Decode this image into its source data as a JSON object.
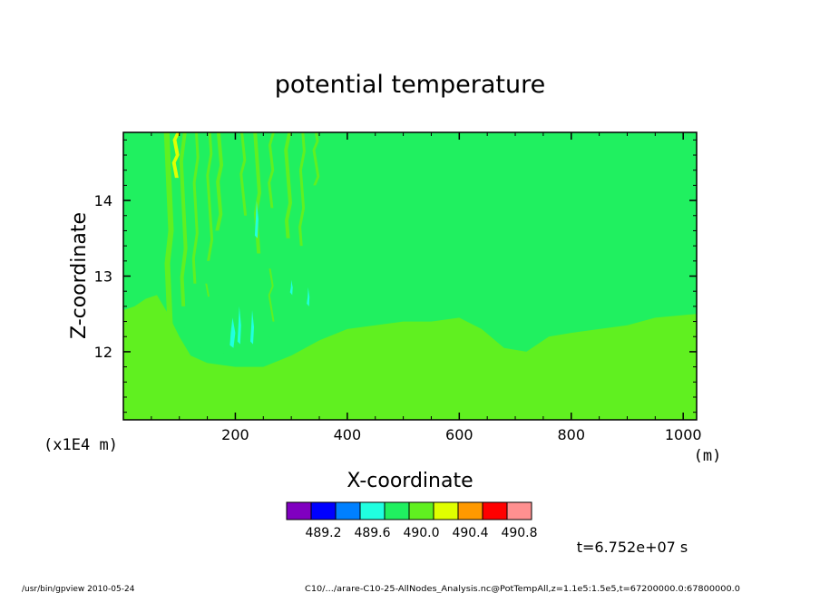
{
  "chart_data": {
    "type": "heatmap",
    "title": "potential temperature",
    "xlabel": "X-coordinate",
    "ylabel": "Z-coordinate",
    "x_unit": "(m)",
    "y_unit": "(x1E4 m)",
    "xlim": [
      0,
      1024
    ],
    "ylim": [
      11.1,
      14.9
    ],
    "x_ticks": [
      {
        "value": 200,
        "label": "200"
      },
      {
        "value": 400,
        "label": "400"
      },
      {
        "value": 600,
        "label": "600"
      },
      {
        "value": 800,
        "label": "800"
      },
      {
        "value": 1000,
        "label": "1000"
      }
    ],
    "y_ticks": [
      {
        "value": 12,
        "label": "12"
      },
      {
        "value": 13,
        "label": "13"
      },
      {
        "value": 14,
        "label": "14"
      }
    ],
    "background_color": "#20f060",
    "lower_layer": {
      "color": "#60f020",
      "boundary": [
        [
          0,
          12.55
        ],
        [
          20,
          12.6
        ],
        [
          40,
          12.7
        ],
        [
          60,
          12.75
        ],
        [
          80,
          12.5
        ],
        [
          100,
          12.2
        ],
        [
          120,
          11.95
        ],
        [
          150,
          11.85
        ],
        [
          200,
          11.8
        ],
        [
          250,
          11.8
        ],
        [
          300,
          11.95
        ],
        [
          350,
          12.15
        ],
        [
          400,
          12.3
        ],
        [
          450,
          12.35
        ],
        [
          500,
          12.4
        ],
        [
          550,
          12.4
        ],
        [
          600,
          12.45
        ],
        [
          640,
          12.3
        ],
        [
          680,
          12.05
        ],
        [
          720,
          12.0
        ],
        [
          760,
          12.2
        ],
        [
          800,
          12.25
        ],
        [
          850,
          12.3
        ],
        [
          900,
          12.35
        ],
        [
          950,
          12.45
        ],
        [
          1024,
          12.5
        ]
      ]
    },
    "cool_pocket": {
      "color": "#20f060",
      "outline": [
        [
          100,
          12.5
        ],
        [
          130,
          12.7
        ],
        [
          170,
          12.75
        ],
        [
          200,
          12.6
        ],
        [
          230,
          12.4
        ],
        [
          260,
          12.2
        ],
        [
          290,
          12.0
        ],
        [
          260,
          11.95
        ],
        [
          210,
          11.95
        ],
        [
          160,
          12.0
        ],
        [
          120,
          12.1
        ]
      ]
    },
    "streaks": [
      {
        "x": 82,
        "z0": 12.3,
        "z1": 14.9,
        "w": 7,
        "color": "#60f020"
      },
      {
        "x": 95,
        "z0": 14.3,
        "z1": 14.9,
        "w": 5,
        "color": "#e0ff00"
      },
      {
        "x": 108,
        "z0": 12.6,
        "z1": 14.9,
        "w": 5,
        "color": "#60f020"
      },
      {
        "x": 130,
        "z0": 12.9,
        "z1": 14.9,
        "w": 4,
        "color": "#60f020"
      },
      {
        "x": 155,
        "z0": 13.2,
        "z1": 14.9,
        "w": 4,
        "color": "#60f020"
      },
      {
        "x": 172,
        "z0": 13.6,
        "z1": 14.9,
        "w": 5,
        "color": "#60f020"
      },
      {
        "x": 215,
        "z0": 13.8,
        "z1": 14.9,
        "w": 4,
        "color": "#60f020"
      },
      {
        "x": 240,
        "z0": 13.3,
        "z1": 14.9,
        "w": 5,
        "color": "#60f020"
      },
      {
        "x": 265,
        "z0": 13.9,
        "z1": 14.9,
        "w": 4,
        "color": "#60f020"
      },
      {
        "x": 295,
        "z0": 13.5,
        "z1": 14.9,
        "w": 5,
        "color": "#60f020"
      },
      {
        "x": 320,
        "z0": 13.4,
        "z1": 14.9,
        "w": 4,
        "color": "#60f020"
      },
      {
        "x": 345,
        "z0": 14.2,
        "z1": 14.9,
        "w": 4,
        "color": "#60f020"
      },
      {
        "x": 150,
        "z0": 12.3,
        "z1": 12.9,
        "w": 3,
        "color": "#60f020"
      },
      {
        "x": 265,
        "z0": 12.4,
        "z1": 13.1,
        "w": 3,
        "color": "#60f020"
      }
    ],
    "cyan_spots": [
      {
        "x": 238,
        "z0": 13.5,
        "z1": 14.0,
        "w": 4,
        "color": "#20ffe0"
      },
      {
        "x": 195,
        "z0": 12.05,
        "z1": 12.45,
        "w": 6,
        "color": "#20ffe0"
      },
      {
        "x": 207,
        "z0": 12.1,
        "z1": 12.6,
        "w": 4,
        "color": "#20ffe0"
      },
      {
        "x": 230,
        "z0": 12.1,
        "z1": 12.55,
        "w": 4,
        "color": "#20ffe0"
      },
      {
        "x": 300,
        "z0": 12.75,
        "z1": 12.95,
        "w": 3,
        "color": "#20ffe0"
      },
      {
        "x": 330,
        "z0": 12.6,
        "z1": 12.85,
        "w": 3,
        "color": "#20ffe0"
      }
    ],
    "colorbar": {
      "colors": [
        "#8000c0",
        "#0000ff",
        "#0080ff",
        "#20ffe0",
        "#20f060",
        "#60f020",
        "#e0ff00",
        "#ff9900",
        "#ff0000",
        "#ff9090"
      ],
      "labels": [
        "489.2",
        "489.6",
        "490.0",
        "490.4",
        "490.8"
      ]
    }
  },
  "time_label": "t=6.752e+07 s",
  "footer_left": "/usr/bin/gpview  2010-05-24",
  "footer_right": "C10/.../arare-C10-25-AllNodes_Analysis.nc@PotTempAll,z=1.1e5:1.5e5,t=67200000.0:67800000.0"
}
